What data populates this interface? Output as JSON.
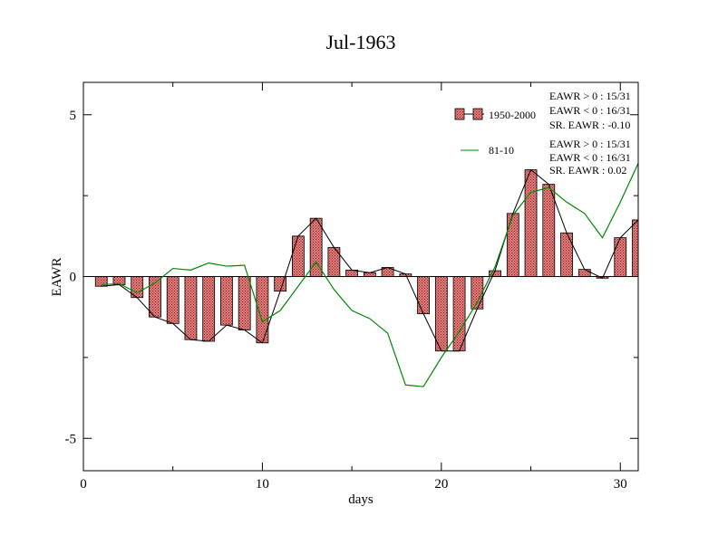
{
  "chart_data": {
    "type": "bar",
    "title": "Jul-1963",
    "xlabel": "days",
    "ylabel": "EAWR",
    "xlim": [
      0,
      31
    ],
    "ylim": [
      -6,
      6
    ],
    "x_ticks": [
      0,
      10,
      20,
      30
    ],
    "y_ticks": [
      -5,
      0,
      5
    ],
    "x_tick_labels": [
      "0",
      "10",
      "20",
      "30"
    ],
    "y_tick_labels": [
      "-5",
      "0",
      "5"
    ],
    "grid": false,
    "legend_position": "top-right",
    "x": [
      1,
      2,
      3,
      4,
      5,
      6,
      7,
      8,
      9,
      10,
      11,
      12,
      13,
      14,
      15,
      16,
      17,
      18,
      19,
      20,
      21,
      22,
      23,
      24,
      25,
      26,
      27,
      28,
      29,
      30,
      31
    ],
    "series": [
      {
        "name": "1950-2000",
        "type": "bar",
        "color": "#e07070",
        "values": [
          -0.3,
          -0.25,
          -0.65,
          -1.25,
          -1.45,
          -1.95,
          -2.0,
          -1.5,
          -1.65,
          -2.05,
          -0.45,
          1.25,
          1.8,
          0.9,
          0.2,
          0.12,
          0.28,
          0.08,
          -1.15,
          -2.3,
          -2.3,
          -1.0,
          0.18,
          1.95,
          3.3,
          2.85,
          1.35,
          0.22,
          -0.05,
          1.2,
          1.75
        ]
      },
      {
        "name": "81-10",
        "type": "line",
        "color": "#008800",
        "values": [
          -0.25,
          -0.22,
          -0.5,
          -0.2,
          0.25,
          0.2,
          0.42,
          0.32,
          0.35,
          -1.4,
          -1.05,
          -0.3,
          0.45,
          -0.4,
          -1.05,
          -1.3,
          -1.75,
          -3.35,
          -3.4,
          -2.5,
          -1.7,
          -0.8,
          0.3,
          1.9,
          2.6,
          2.75,
          2.3,
          1.95,
          1.2,
          2.3,
          3.5
        ]
      }
    ],
    "stats": {
      "group1": [
        "EAWR > 0 : 15/31",
        "EAWR < 0 : 16/31",
        "SR. EAWR : -0.10"
      ],
      "group2": [
        "EAWR > 0 : 15/31",
        "EAWR < 0 : 16/31",
        "SR. EAWR :  0.02"
      ]
    }
  }
}
